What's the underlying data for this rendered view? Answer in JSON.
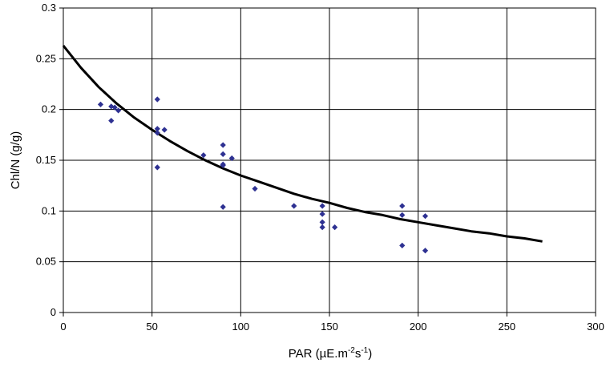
{
  "chart_data": {
    "type": "scatter",
    "xlabel": "PAR (µE.m",
    "xlabel_sup1": "-2",
    "xlabel_mid": "s",
    "xlabel_sup2": "-1",
    "xlabel_end": ")",
    "ylabel": "Chl/N (g/g)",
    "xlim": [
      0,
      300
    ],
    "ylim": [
      0,
      0.3
    ],
    "xticks": [
      0,
      50,
      100,
      150,
      200,
      250,
      300
    ],
    "yticks": [
      0,
      0.05,
      0.1,
      0.15,
      0.2,
      0.25,
      0.3
    ],
    "xtick_labels": [
      "0",
      "50",
      "100",
      "150",
      "200",
      "250",
      "300"
    ],
    "ytick_labels": [
      "0",
      "0.05",
      "0.1",
      "0.15",
      "0.2",
      "0.25",
      "0.3"
    ],
    "grid": true,
    "series": [
      {
        "kind": "points",
        "color": "#2e3192",
        "x": [
          21,
          27,
          27,
          29,
          31,
          53,
          53,
          53,
          53,
          57,
          79,
          90,
          90,
          90,
          90,
          90,
          95,
          108,
          130,
          146,
          146,
          146,
          146,
          153,
          191,
          191,
          191,
          204,
          204
        ],
        "y": [
          0.205,
          0.203,
          0.189,
          0.202,
          0.199,
          0.21,
          0.181,
          0.177,
          0.143,
          0.18,
          0.155,
          0.165,
          0.156,
          0.145,
          0.146,
          0.104,
          0.152,
          0.122,
          0.105,
          0.105,
          0.097,
          0.089,
          0.084,
          0.084,
          0.105,
          0.096,
          0.066,
          0.095,
          0.061
        ]
      },
      {
        "kind": "fitted-curve",
        "color": "#000000",
        "x": [
          0,
          10,
          20,
          30,
          40,
          50,
          60,
          70,
          80,
          90,
          100,
          110,
          120,
          130,
          140,
          150,
          160,
          170,
          180,
          190,
          200,
          210,
          220,
          230,
          240,
          250,
          260,
          270
        ],
        "y": [
          0.263,
          0.241,
          0.222,
          0.206,
          0.192,
          0.18,
          0.169,
          0.159,
          0.15,
          0.142,
          0.135,
          0.129,
          0.123,
          0.117,
          0.112,
          0.108,
          0.103,
          0.099,
          0.096,
          0.092,
          0.089,
          0.086,
          0.083,
          0.08,
          0.078,
          0.075,
          0.073,
          0.07
        ]
      }
    ]
  }
}
